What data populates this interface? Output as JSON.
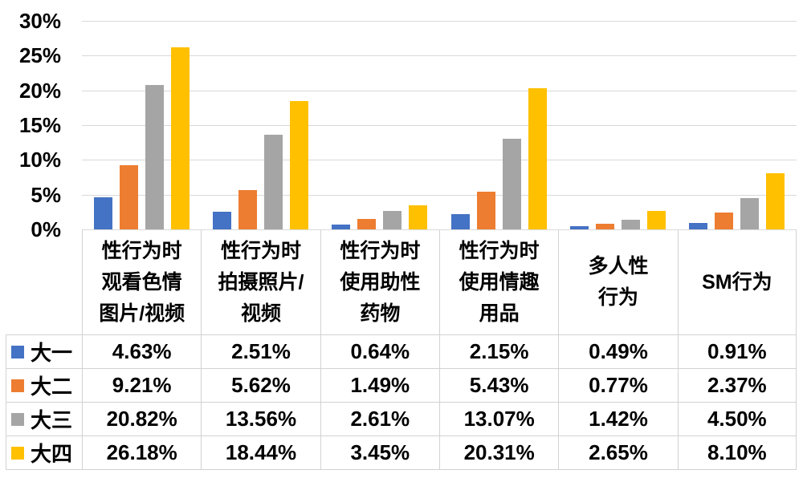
{
  "chart_data": {
    "type": "bar",
    "title": "",
    "xlabel": "",
    "ylabel": "",
    "ylim": [
      0,
      30
    ],
    "grid": true,
    "legend_position": "data-table-left",
    "y_ticks": [
      "30%",
      "25%",
      "20%",
      "15%",
      "10%",
      "5%",
      "0%"
    ],
    "categories": [
      "性行为时观看色情图片/视频",
      "性行为时拍摄照片/视频",
      "性行为时使用助性药物",
      "性行为时使用情趣用品",
      "多人性行为",
      "SM行为"
    ],
    "series": [
      {
        "name": "大一",
        "color": "#4472C4",
        "values": [
          4.63,
          2.51,
          0.64,
          2.15,
          0.49,
          0.91
        ]
      },
      {
        "name": "大二",
        "color": "#ED7D31",
        "values": [
          9.21,
          5.62,
          1.49,
          5.43,
          0.77,
          2.37
        ]
      },
      {
        "name": "大三",
        "color": "#A5A5A5",
        "values": [
          20.82,
          13.56,
          2.61,
          13.07,
          1.42,
          4.5
        ]
      },
      {
        "name": "大四",
        "color": "#FFC000",
        "values": [
          26.18,
          18.44,
          3.45,
          20.31,
          2.65,
          8.1
        ]
      }
    ]
  },
  "table": {
    "columns": [
      {
        "lines": [
          "性行为时",
          "观看色情",
          "图片/视频"
        ]
      },
      {
        "lines": [
          "性行为时",
          "拍摄照片/",
          "视频"
        ]
      },
      {
        "lines": [
          "性行为时",
          "使用助性",
          "药物"
        ]
      },
      {
        "lines": [
          "性行为时",
          "使用情趣",
          "用品"
        ]
      },
      {
        "lines": [
          "多人性",
          "行为"
        ]
      },
      {
        "lines": [
          "SM行为"
        ]
      }
    ],
    "rows": [
      {
        "name": "大一",
        "color": "#4472C4",
        "cells": [
          "4.63%",
          "2.51%",
          "0.64%",
          "2.15%",
          "0.49%",
          "0.91%"
        ]
      },
      {
        "name": "大二",
        "color": "#ED7D31",
        "cells": [
          "9.21%",
          "5.62%",
          "1.49%",
          "5.43%",
          "0.77%",
          "2.37%"
        ]
      },
      {
        "name": "大三",
        "color": "#A5A5A5",
        "cells": [
          "20.82%",
          "13.56%",
          "2.61%",
          "13.07%",
          "1.42%",
          "4.50%"
        ]
      },
      {
        "name": "大四",
        "color": "#FFC000",
        "cells": [
          "26.18%",
          "18.44%",
          "3.45%",
          "20.31%",
          "2.65%",
          "8.10%"
        ]
      }
    ]
  }
}
